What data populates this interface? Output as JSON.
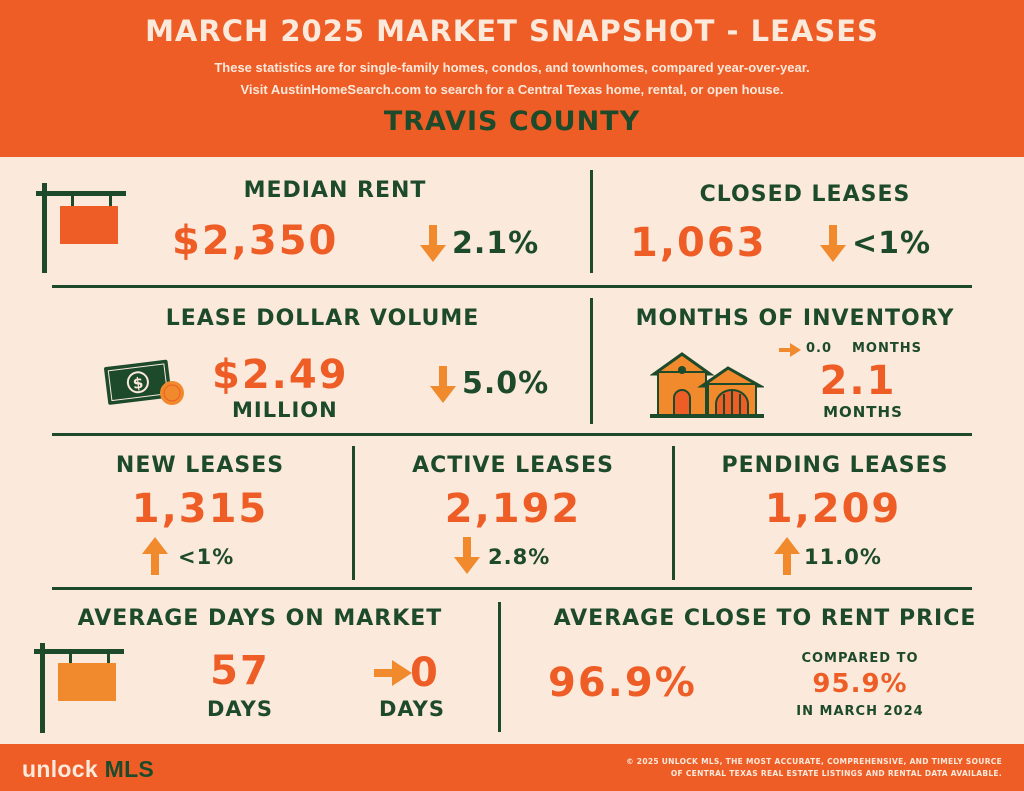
{
  "header": {
    "title": "MARCH 2025 MARKET SNAPSHOT - LEASES",
    "subtitle_line1": "These statistics are for single-family homes, condos, and townhomes, compared year-over-year.",
    "subtitle_line2": "Visit AustinHomeSearch.com to search for a Central Texas home, rental, or open house.",
    "county": "TRAVIS COUNTY"
  },
  "stats": {
    "median_rent": {
      "label": "MEDIAN RENT",
      "value": "$2,350",
      "change": "2.1%",
      "direction": "down"
    },
    "closed_leases": {
      "label": "CLOSED LEASES",
      "value": "1,063",
      "change": "<1%",
      "direction": "down"
    },
    "lease_dollar_volume": {
      "label": "LEASE DOLLAR VOLUME",
      "value": "$2.49",
      "unit": "MILLION",
      "change": "5.0%",
      "direction": "down"
    },
    "months_of_inventory": {
      "label": "MONTHS OF INVENTORY",
      "change": "0.0",
      "change_unit": "MONTHS",
      "direction": "flat",
      "value": "2.1",
      "unit": "MONTHS"
    },
    "new_leases": {
      "label": "NEW LEASES",
      "value": "1,315",
      "change": "<1%",
      "direction": "up"
    },
    "active_leases": {
      "label": "ACTIVE LEASES",
      "value": "2,192",
      "change": "2.8%",
      "direction": "down"
    },
    "pending_leases": {
      "label": "PENDING LEASES",
      "value": "1,209",
      "change": "11.0%",
      "direction": "up"
    },
    "avg_days_on_market": {
      "label": "AVERAGE DAYS ON MARKET",
      "value": "57",
      "unit": "DAYS",
      "change": "0",
      "change_unit": "DAYS",
      "direction": "flat"
    },
    "avg_close_to_rent": {
      "label": "AVERAGE CLOSE TO RENT PRICE",
      "value": "96.9%",
      "compared_label": "COMPARED TO",
      "compared_value": "95.9%",
      "compared_period": "IN MARCH 2024"
    }
  },
  "footer": {
    "logo_part1": "unlock",
    "logo_part2": "MLS",
    "line1": "© 2025 UNLOCK MLS, THE MOST ACCURATE, COMPREHENSIVE, AND TIMELY SOURCE",
    "line2": "OF CENTRAL TEXAS REAL ESTATE LISTINGS AND RENTAL DATA AVAILABLE."
  },
  "colors": {
    "primary_orange": "#ee5d25",
    "accent_orange": "#f08a2c",
    "dark_green": "#1c4a2a",
    "cream": "#fbe9dc"
  },
  "icons": [
    "sign-post-icon",
    "money-bill-icon",
    "house-icon",
    "arrow-down-icon",
    "arrow-up-icon",
    "arrow-right-icon"
  ]
}
